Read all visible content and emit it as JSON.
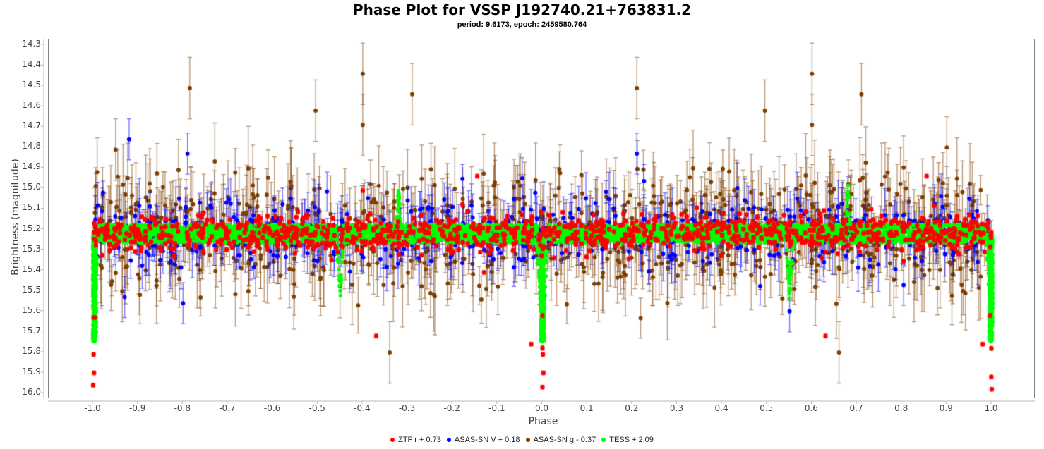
{
  "header": {
    "title": "Phase Plot for VSSP J192740.21+763831.2",
    "subtitle": "period: 9.6173, epoch: 2459580.764"
  },
  "axes": {
    "xlabel": "Phase",
    "ylabel": "Brightness (magnitude)",
    "xticks": [
      "-1.0",
      "-0.9",
      "-0.8",
      "-0.7",
      "-0.6",
      "-0.5",
      "-0.4",
      "-0.3",
      "-0.2",
      "-0.1",
      "0.0",
      "0.1",
      "0.2",
      "0.3",
      "0.4",
      "0.5",
      "0.6",
      "0.7",
      "0.8",
      "0.9",
      "1.0"
    ],
    "yticks": [
      "14.3",
      "14.4",
      "14.5",
      "14.6",
      "14.7",
      "14.8",
      "14.9",
      "15.0",
      "15.1",
      "15.2",
      "15.3",
      "15.4",
      "15.5",
      "15.6",
      "15.7",
      "15.8",
      "15.9",
      "16.0"
    ]
  },
  "legend": [
    {
      "label": "ZTF r + 0.73",
      "color": "#ff0000"
    },
    {
      "label": "ASAS-SN V + 0.18",
      "color": "#0000ff"
    },
    {
      "label": "ASAS-SN g  - 0.37",
      "color": "#7f3f00"
    },
    {
      "label": "TESS + 2.09",
      "color": "#00ff00"
    }
  ],
  "chart_data": {
    "type": "scatter",
    "title": "Phase Plot for VSSP J192740.21+763831.2",
    "subtitle": "period: 9.6173, epoch: 2459580.764",
    "xlabel": "Phase",
    "ylabel": "Brightness (magnitude)",
    "xlim": [
      -1.1,
      1.1
    ],
    "ylim": [
      16.02,
      14.28
    ],
    "y_inverted": true,
    "grid": false,
    "legend_position": "bottom",
    "series": [
      {
        "name": "ZTF r + 0.73",
        "color": "#ff0000",
        "baseline_mag": 15.22,
        "scatter": 0.05,
        "err": 0.01,
        "eclipse": {
          "phase": 0.0,
          "depth_to": 15.98,
          "width": 0.012
        },
        "outliers": [
          [
            -0.37,
            15.72
          ],
          [
            -0.4,
            15.01
          ],
          [
            -0.145,
            14.94
          ],
          [
            -0.025,
            15.76
          ],
          [
            0.63,
            15.72
          ],
          [
            0.855,
            14.94
          ],
          [
            0.98,
            15.76
          ],
          [
            -0.82,
            15.33
          ],
          [
            -0.13,
            15.41
          ]
        ]
      },
      {
        "name": "ASAS-SN V + 0.18",
        "color": "#0000ff",
        "baseline_mag": 15.22,
        "scatter": 0.14,
        "err": 0.09,
        "outliers": [
          [
            -0.92,
            14.76
          ],
          [
            -0.79,
            14.83
          ],
          [
            -0.045,
            14.95
          ],
          [
            0.21,
            14.83
          ],
          [
            -0.8,
            15.56
          ],
          [
            -0.93,
            15.53
          ],
          [
            0.55,
            15.6
          ]
        ]
      },
      {
        "name": "ASAS-SN g  - 0.37",
        "color": "#7f3f00",
        "baseline_mag": 15.22,
        "scatter": 0.2,
        "err": 0.14,
        "outliers": [
          [
            -0.4,
            14.44
          ],
          [
            -0.4,
            14.69
          ],
          [
            -0.785,
            14.51
          ],
          [
            -0.29,
            14.54
          ],
          [
            0.21,
            14.51
          ],
          [
            0.6,
            14.44
          ],
          [
            0.6,
            14.69
          ],
          [
            0.71,
            14.54
          ],
          [
            -0.505,
            14.62
          ],
          [
            0.495,
            14.62
          ],
          [
            -0.34,
            15.8
          ],
          [
            0.66,
            15.8
          ],
          [
            -0.95,
            14.81
          ],
          [
            0.9,
            14.8
          ],
          [
            -0.81,
            14.91
          ]
        ]
      },
      {
        "name": "TESS + 2.09",
        "color": "#00ff00",
        "baseline_mag": 15.22,
        "band_halfwidth": 0.045,
        "primary_eclipse": {
          "phase": 0.0,
          "min_mag": 15.75
        },
        "secondary_eclipse": {
          "phase": -0.45,
          "min_mag": 15.51
        },
        "spike": {
          "phase": -0.32,
          "mag": 15.01
        }
      }
    ]
  }
}
